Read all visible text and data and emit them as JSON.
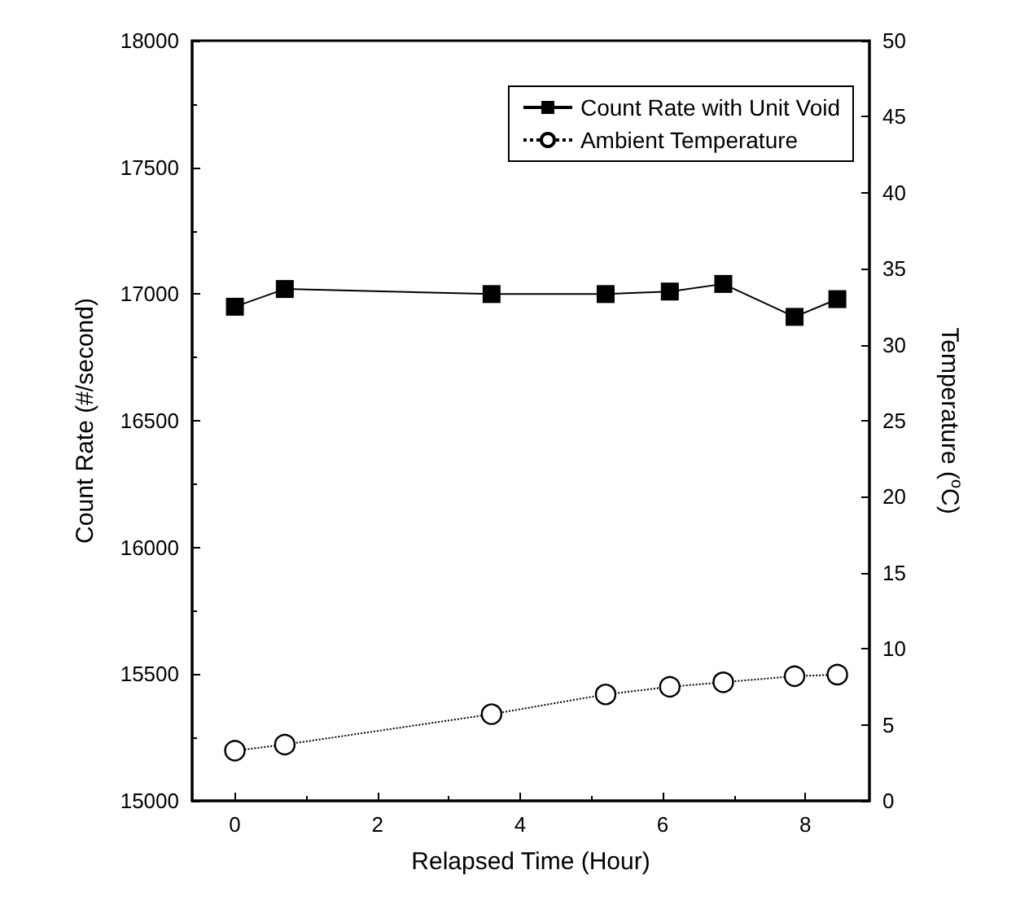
{
  "chart_data": {
    "type": "line",
    "xlabel": "Relapsed Time (Hour)",
    "ylabel": "Count Rate (#/second)",
    "y2label": "Temperature ($^{o}$C)",
    "x": [
      0,
      0.7,
      3.6,
      5.2,
      6.1,
      6.85,
      7.85,
      8.45
    ],
    "xlim": [
      -0.6,
      8.9
    ],
    "xticks": [
      0,
      2,
      4,
      6,
      8
    ],
    "ylim": [
      15000,
      18000
    ],
    "yticks": [
      15000,
      15500,
      16000,
      16500,
      17000,
      17500,
      18000
    ],
    "y2lim": [
      0,
      50
    ],
    "y2ticks": [
      0,
      5,
      10,
      15,
      20,
      25,
      30,
      35,
      40,
      45,
      50
    ],
    "legend": "top right",
    "grid": false,
    "series": [
      {
        "name": "Count Rate with Unit Void",
        "color": "#000000",
        "marker": "square",
        "line_style": "solid",
        "values": [
          16950,
          17020,
          17000,
          17000,
          17010,
          17040,
          16910,
          16980
        ]
      },
      {
        "name": "Ambient Temperature",
        "color": "#000000",
        "marker": "circle",
        "line_style": "dotted",
        "axis": "y2",
        "values": [
          3.3,
          3.7,
          5.7,
          7.0,
          7.5,
          7.8,
          8.2,
          8.3
        ]
      }
    ]
  }
}
